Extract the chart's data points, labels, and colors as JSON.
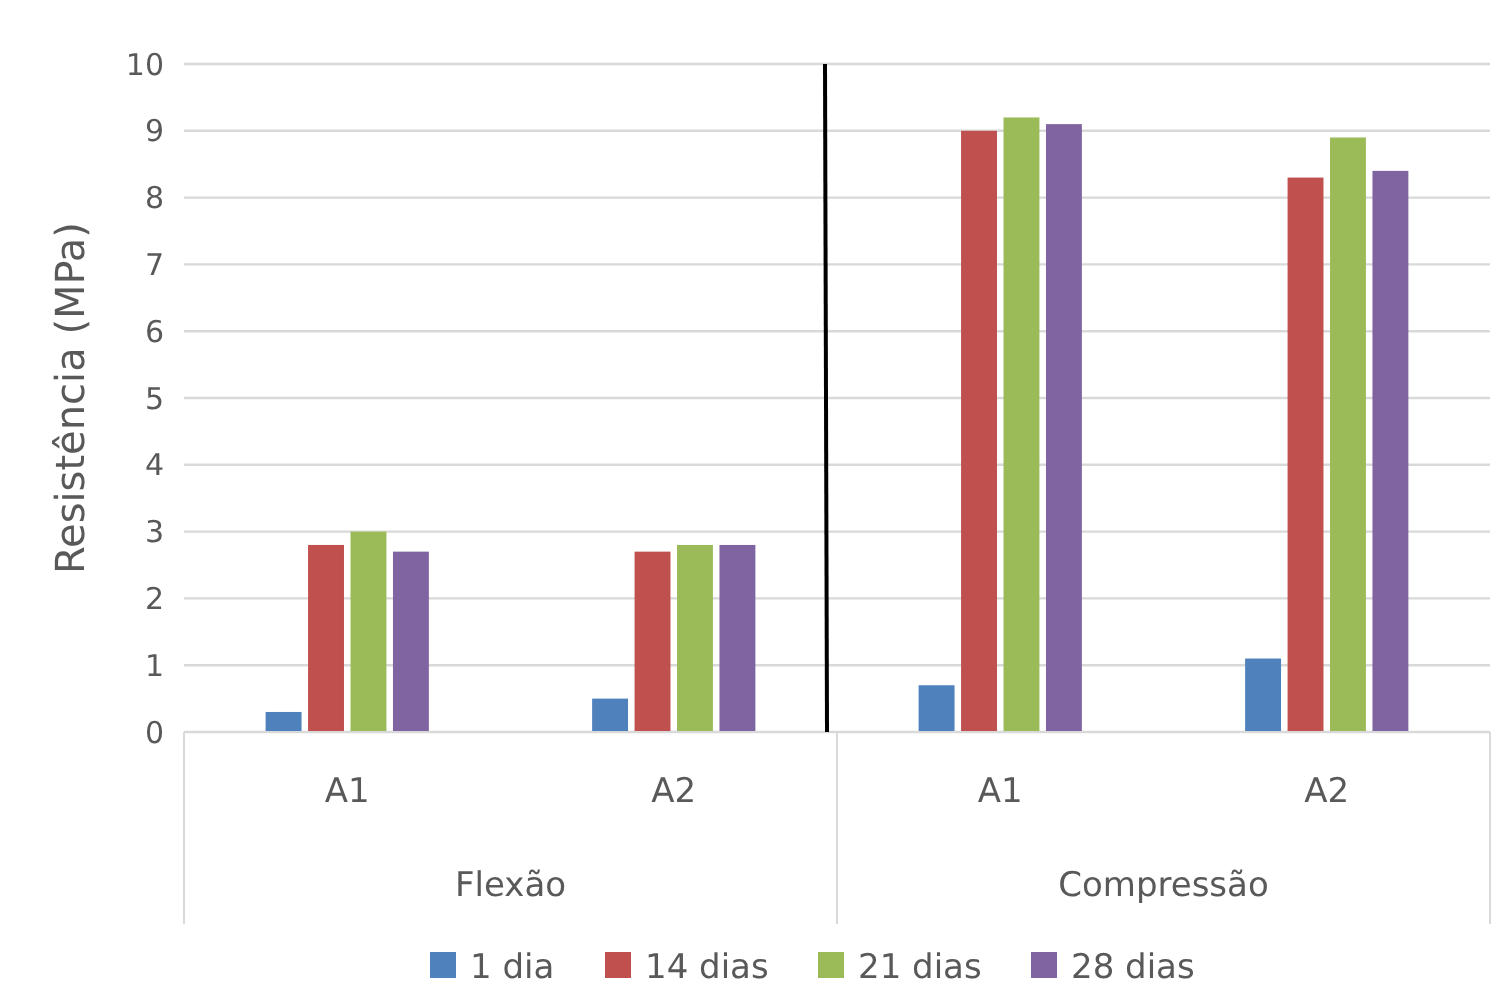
{
  "chart_data": {
    "type": "bar",
    "ylabel": "Resistência (MPa)",
    "categories": [
      "A1",
      "A2",
      "A1",
      "A2"
    ],
    "annotations": [
      "Flexão",
      "Compressão"
    ],
    "series": [
      {
        "name": "1 dia",
        "color": "#4f81bd",
        "values": [
          0.3,
          0.5,
          0.7,
          1.1
        ]
      },
      {
        "name": "14 dias",
        "color": "#c0504d",
        "values": [
          2.8,
          2.7,
          9.0,
          8.3
        ]
      },
      {
        "name": "21 dias",
        "color": "#9bbb59",
        "values": [
          3.0,
          2.8,
          9.2,
          8.9
        ]
      },
      {
        "name": "28 dias",
        "color": "#8064a2",
        "values": [
          2.7,
          2.8,
          9.1,
          8.4
        ]
      }
    ],
    "ylim": [
      0,
      10
    ],
    "yticks": [
      0,
      1,
      2,
      3,
      4,
      5,
      6,
      7,
      8,
      9,
      10
    ],
    "grid": "y",
    "legend": "bottom"
  }
}
